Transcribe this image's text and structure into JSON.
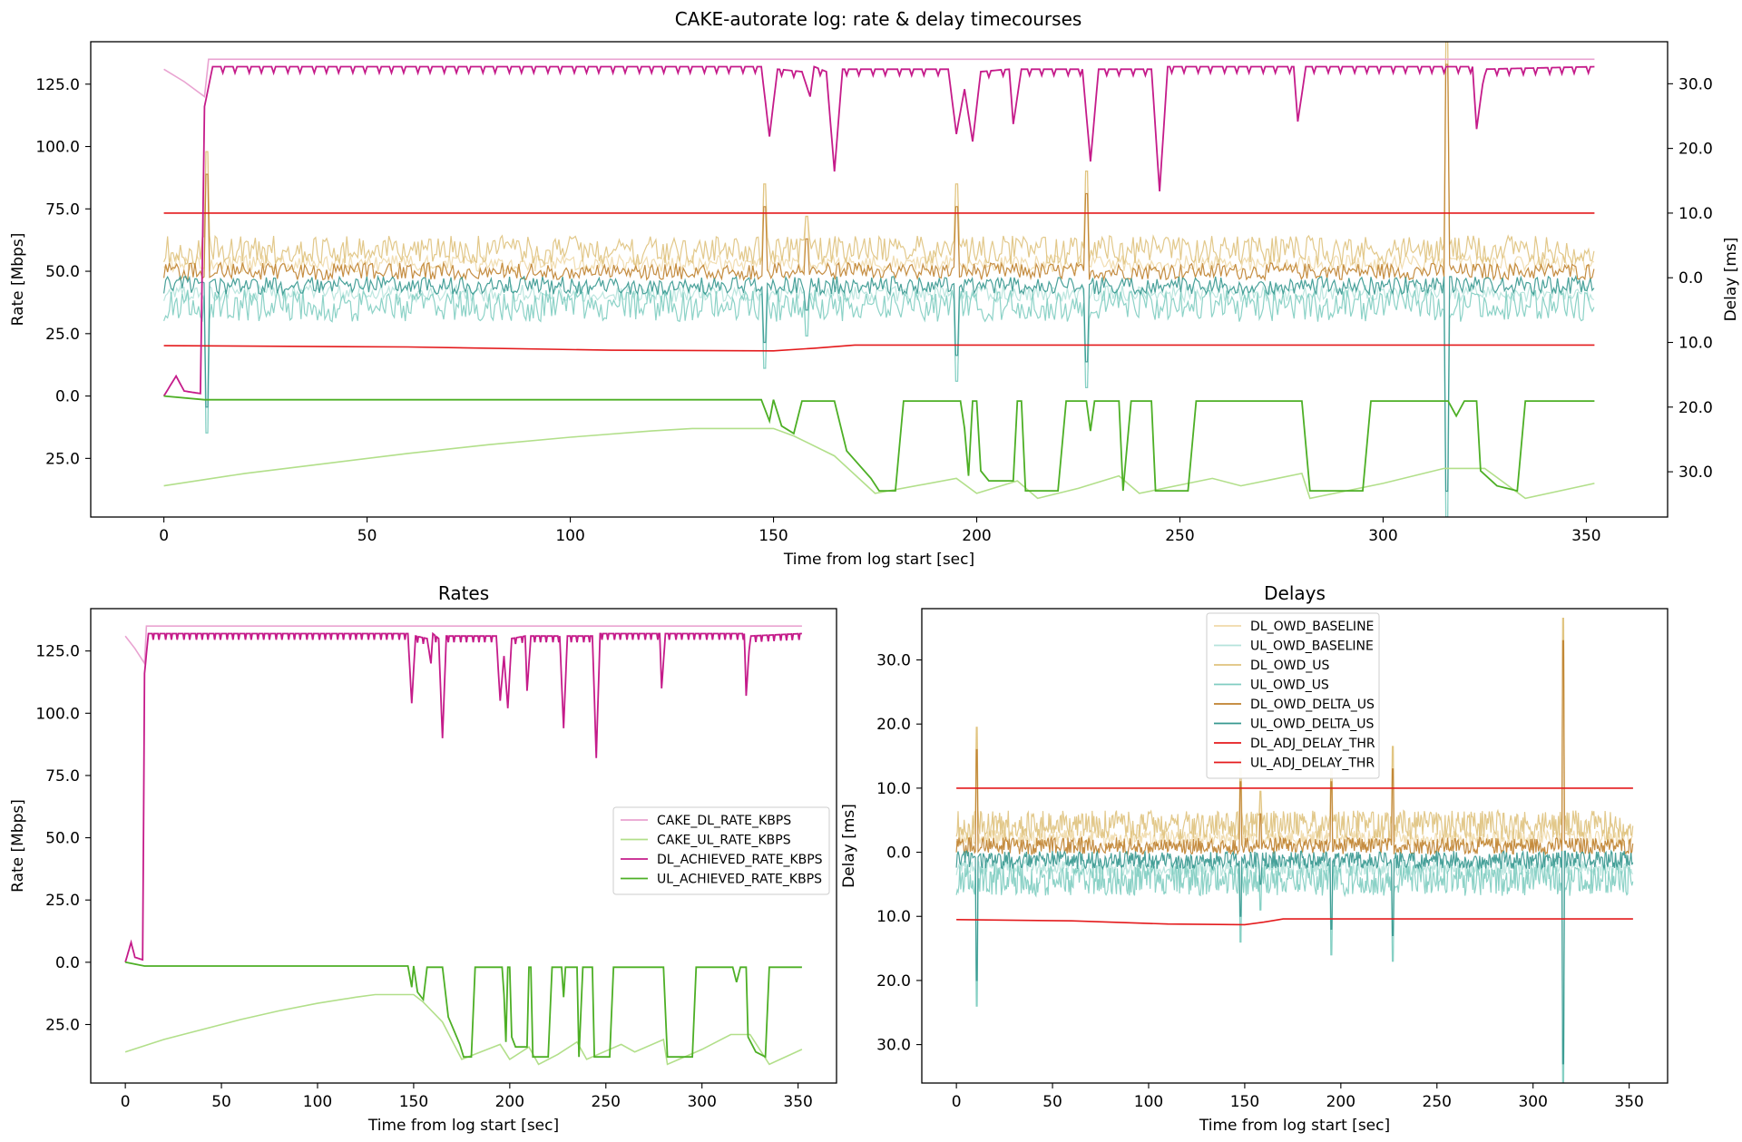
{
  "figure": {
    "suptitle": "CAKE-autorate log: rate & delay timecourses"
  },
  "colors": {
    "CAKE_DL_RATE_KBPS": "#e9a3d1",
    "CAKE_UL_RATE_KBPS": "#b2df8a",
    "DL_ACHIEVED_RATE_KBPS": "#c51b8a",
    "UL_ACHIEVED_RATE_KBPS": "#4daf25",
    "DL_OWD_BASELINE": "#f0d9a8",
    "UL_OWD_BASELINE": "#b5e3db",
    "DL_OWD_US": "#dfc27d",
    "UL_OWD_US": "#80cdc1",
    "DL_OWD_DELTA_US": "#bf812d",
    "UL_OWD_DELTA_US": "#35978f",
    "DL_ADJ_DELAY_THR": "#e41a1c",
    "UL_ADJ_DELAY_THR": "#e41a1c"
  },
  "chart_data": [
    {
      "id": "combined",
      "type": "line",
      "title": "",
      "xlabel": "Time from log start [sec]",
      "ylabel": "Rate [Mbps]",
      "y2label": "Delay [ms]",
      "xlim": [
        -18,
        370
      ],
      "ylim": [
        -48.5,
        142
      ],
      "y2lim": [
        -37,
        36.5
      ],
      "xticks": [
        0,
        50,
        100,
        150,
        200,
        250,
        300,
        350
      ],
      "yticks": [
        {
          "v": 125,
          "label": "125.0"
        },
        {
          "v": 100,
          "label": "100.0"
        },
        {
          "v": 75,
          "label": "75.0"
        },
        {
          "v": 50,
          "label": "50.0"
        },
        {
          "v": 25,
          "label": "25.0"
        },
        {
          "v": 0,
          "label": "0.0"
        },
        {
          "v": -25,
          "label": "25.0"
        }
      ],
      "y2ticks": [
        {
          "v": 30,
          "label": "30.0"
        },
        {
          "v": 20,
          "label": "20.0"
        },
        {
          "v": 10,
          "label": "10.0"
        },
        {
          "v": 0,
          "label": "0.0"
        },
        {
          "v": -10,
          "label": "10.0"
        },
        {
          "v": -20,
          "label": "20.0"
        },
        {
          "v": -30,
          "label": "30.0"
        }
      ],
      "rate_series": [
        "CAKE_DL_RATE_KBPS",
        "CAKE_UL_RATE_KBPS",
        "DL_ACHIEVED_RATE_KBPS",
        "UL_ACHIEVED_RATE_KBPS"
      ],
      "delay_series": [
        "DL_OWD_BASELINE",
        "UL_OWD_BASELINE",
        "DL_OWD_US",
        "UL_OWD_US",
        "DL_OWD_DELTA_US",
        "UL_OWD_DELTA_US",
        "DL_ADJ_DELAY_THR",
        "UL_ADJ_DELAY_THR"
      ],
      "legend": "none"
    },
    {
      "id": "rates",
      "type": "line",
      "title": "Rates",
      "xlabel": "Time from log start [sec]",
      "ylabel": "Rate [Mbps]",
      "xlim": [
        -18,
        370
      ],
      "ylim": [
        -48.5,
        142
      ],
      "xticks": [
        0,
        50,
        100,
        150,
        200,
        250,
        300,
        350
      ],
      "yticks": [
        {
          "v": 125,
          "label": "125.0"
        },
        {
          "v": 100,
          "label": "100.0"
        },
        {
          "v": 75,
          "label": "75.0"
        },
        {
          "v": 50,
          "label": "50.0"
        },
        {
          "v": 25,
          "label": "25.0"
        },
        {
          "v": 0,
          "label": "0.0"
        },
        {
          "v": -25,
          "label": "25.0"
        }
      ],
      "series": [
        "CAKE_DL_RATE_KBPS",
        "CAKE_UL_RATE_KBPS",
        "DL_ACHIEVED_RATE_KBPS",
        "UL_ACHIEVED_RATE_KBPS"
      ],
      "legend": "center-right"
    },
    {
      "id": "delays",
      "type": "line",
      "title": "Delays",
      "xlabel": "Time from log start [sec]",
      "ylabel": "Delay [ms]",
      "xlim": [
        -18,
        370
      ],
      "ylim": [
        -36,
        38
      ],
      "xticks": [
        0,
        50,
        100,
        150,
        200,
        250,
        300,
        350
      ],
      "yticks": [
        {
          "v": 30,
          "label": "30.0"
        },
        {
          "v": 20,
          "label": "20.0"
        },
        {
          "v": 10,
          "label": "10.0"
        },
        {
          "v": 0,
          "label": "0.0"
        },
        {
          "v": -10,
          "label": "10.0"
        },
        {
          "v": -20,
          "label": "20.0"
        },
        {
          "v": -30,
          "label": "30.0"
        }
      ],
      "series": [
        "DL_OWD_BASELINE",
        "UL_OWD_BASELINE",
        "DL_OWD_US",
        "UL_OWD_US",
        "DL_OWD_DELTA_US",
        "UL_OWD_DELTA_US",
        "DL_ADJ_DELAY_THR",
        "UL_ADJ_DELAY_THR"
      ],
      "legend": "upper-center"
    }
  ],
  "series_data": {
    "CAKE_DL_RATE_KBPS": [
      [
        0,
        131
      ],
      [
        5,
        126
      ],
      [
        10,
        120
      ],
      [
        11,
        135
      ],
      [
        352,
        135
      ]
    ],
    "CAKE_UL_RATE_KBPS": [
      [
        0,
        -36
      ],
      [
        20,
        -31
      ],
      [
        40,
        -27
      ],
      [
        60,
        -23
      ],
      [
        80,
        -19.5
      ],
      [
        100,
        -16.5
      ],
      [
        120,
        -14
      ],
      [
        130,
        -13
      ],
      [
        150,
        -13
      ],
      [
        155,
        -16
      ],
      [
        165,
        -24
      ],
      [
        175,
        -39
      ],
      [
        195,
        -33
      ],
      [
        200,
        -39
      ],
      [
        210,
        -34
      ],
      [
        215,
        -41
      ],
      [
        225,
        -37
      ],
      [
        235,
        -32
      ],
      [
        240,
        -39
      ],
      [
        258,
        -33
      ],
      [
        265,
        -36
      ],
      [
        280,
        -31
      ],
      [
        282,
        -41
      ],
      [
        300,
        -35
      ],
      [
        315,
        -29
      ],
      [
        325,
        -29
      ],
      [
        335,
        -41
      ],
      [
        352,
        -35
      ]
    ],
    "DL_ACHIEVED_RATE_KBPS": [
      [
        0,
        0
      ],
      [
        3,
        8
      ],
      [
        5,
        2
      ],
      [
        9,
        1
      ],
      [
        10,
        116
      ],
      [
        12,
        132
      ],
      [
        147,
        132
      ],
      [
        149,
        104
      ],
      [
        151,
        131
      ],
      [
        157,
        130
      ],
      [
        159,
        120
      ],
      [
        160,
        132
      ],
      [
        163,
        130
      ],
      [
        165,
        90
      ],
      [
        167,
        131
      ],
      [
        193,
        131
      ],
      [
        195,
        105
      ],
      [
        197,
        123
      ],
      [
        199,
        102
      ],
      [
        201,
        130
      ],
      [
        208,
        131
      ],
      [
        209,
        109
      ],
      [
        211,
        131
      ],
      [
        226,
        131
      ],
      [
        228,
        94
      ],
      [
        230,
        131
      ],
      [
        243,
        131
      ],
      [
        245,
        82
      ],
      [
        247,
        132
      ],
      [
        278,
        132
      ],
      [
        279,
        110
      ],
      [
        281,
        132
      ],
      [
        322,
        132
      ],
      [
        323,
        107
      ],
      [
        325,
        131
      ],
      [
        352,
        132
      ]
    ],
    "UL_ACHIEVED_RATE_KBPS": [
      [
        0,
        0
      ],
      [
        10,
        -1.5
      ],
      [
        147,
        -1.5
      ],
      [
        149,
        -10
      ],
      [
        150,
        -1.5
      ],
      [
        152,
        -12
      ],
      [
        155,
        -15
      ],
      [
        157,
        -2
      ],
      [
        165,
        -2
      ],
      [
        168,
        -22
      ],
      [
        174,
        -33
      ],
      [
        176,
        -38
      ],
      [
        180,
        -38
      ],
      [
        182,
        -2
      ],
      [
        196,
        -2
      ],
      [
        197,
        -13
      ],
      [
        198,
        -32
      ],
      [
        199,
        -2
      ],
      [
        200,
        -2
      ],
      [
        201,
        -30
      ],
      [
        203,
        -34
      ],
      [
        209,
        -34
      ],
      [
        210,
        -2
      ],
      [
        211,
        -2
      ],
      [
        212,
        -38
      ],
      [
        220,
        -38
      ],
      [
        222,
        -2
      ],
      [
        227,
        -2
      ],
      [
        228,
        -14
      ],
      [
        229,
        -2
      ],
      [
        235,
        -2
      ],
      [
        236,
        -38
      ],
      [
        238,
        -2
      ],
      [
        243,
        -2
      ],
      [
        244,
        -38
      ],
      [
        252,
        -38
      ],
      [
        254,
        -2
      ],
      [
        280,
        -2
      ],
      [
        282,
        -38
      ],
      [
        295,
        -38
      ],
      [
        297,
        -2
      ],
      [
        316,
        -2
      ],
      [
        318,
        -8
      ],
      [
        320,
        -2
      ],
      [
        323,
        -2
      ],
      [
        324,
        -30
      ],
      [
        328,
        -36
      ],
      [
        333,
        -38
      ],
      [
        335,
        -2
      ],
      [
        352,
        -2
      ]
    ],
    "DL_OWD_BASELINE": [
      [
        0,
        3.5
      ],
      [
        352,
        3.5
      ]
    ],
    "UL_OWD_BASELINE": [
      [
        0,
        -4
      ],
      [
        352,
        -4
      ]
    ],
    "DL_OWD_US": [
      [
        0,
        3.5
      ],
      [
        352,
        3.5
      ]
    ],
    "UL_OWD_US": [
      [
        0,
        -4
      ],
      [
        352,
        -4
      ]
    ],
    "DL_OWD_DELTA_US": [
      [
        0,
        0.5
      ],
      [
        352,
        0.5
      ]
    ],
    "UL_OWD_DELTA_US": [
      [
        0,
        -0.5
      ],
      [
        352,
        -0.5
      ]
    ],
    "DL_ADJ_DELAY_THR": [
      [
        0,
        10
      ],
      [
        352,
        10
      ]
    ],
    "UL_ADJ_DELAY_THR": [
      [
        0,
        -10.5
      ],
      [
        60,
        -10.7
      ],
      [
        110,
        -11.2
      ],
      [
        150,
        -11.3
      ],
      [
        160,
        -10.9
      ],
      [
        170,
        -10.4
      ],
      [
        352,
        -10.4
      ]
    ]
  },
  "delay_spikes": [
    {
      "t": 10.5,
      "dl": 16,
      "ul": -20
    },
    {
      "t": 148,
      "dl": 11,
      "ul": -10
    },
    {
      "t": 158,
      "dl": 6,
      "ul": -5
    },
    {
      "t": 195,
      "dl": 11,
      "ul": -12
    },
    {
      "t": 227,
      "dl": 13,
      "ul": -13
    },
    {
      "t": 315.5,
      "dl": 33,
      "ul": -33
    }
  ]
}
